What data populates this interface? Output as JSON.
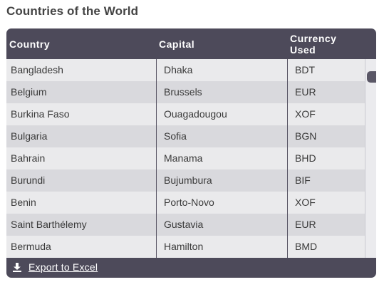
{
  "page_title": "Countries of the World",
  "table": {
    "headers": {
      "country": "Country",
      "capital": "Capital",
      "currency_line1": "Currency",
      "currency_line2": "Used"
    },
    "rows": [
      {
        "country": "Bangladesh",
        "capital": "Dhaka",
        "currency": "BDT"
      },
      {
        "country": "Belgium",
        "capital": "Brussels",
        "currency": "EUR"
      },
      {
        "country": "Burkina Faso",
        "capital": "Ouagadougou",
        "currency": "XOF"
      },
      {
        "country": "Bulgaria",
        "capital": "Sofia",
        "currency": "BGN"
      },
      {
        "country": "Bahrain",
        "capital": "Manama",
        "currency": "BHD"
      },
      {
        "country": "Burundi",
        "capital": "Bujumbura",
        "currency": "BIF"
      },
      {
        "country": "Benin",
        "capital": "Porto-Novo",
        "currency": "XOF"
      },
      {
        "country": "Saint Barthélemy",
        "capital": "Gustavia",
        "currency": "EUR"
      },
      {
        "country": "Bermuda",
        "capital": "Hamilton",
        "currency": "BMD"
      }
    ]
  },
  "footer": {
    "export_label": "Export to Excel",
    "export_icon": "download-icon"
  },
  "colors": {
    "header_bg": "#4d4a5a",
    "row_odd": "#eaeaec",
    "row_even": "#d9d9dd"
  }
}
